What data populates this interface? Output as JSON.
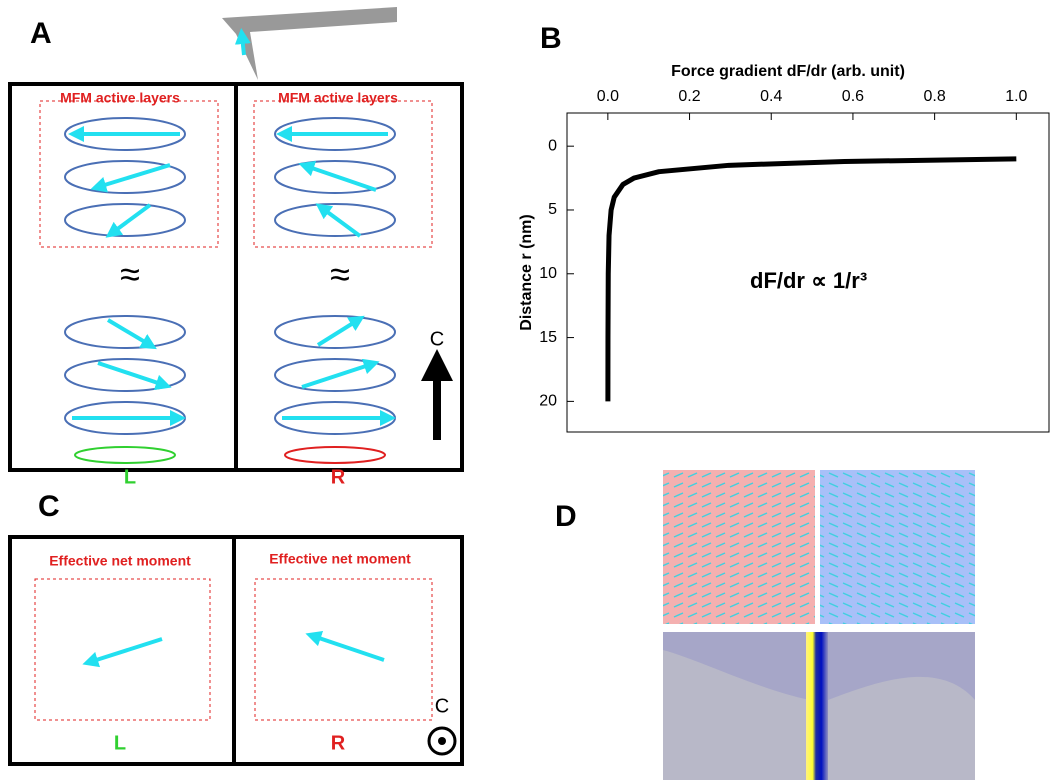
{
  "panels": {
    "a": {
      "label": "A",
      "top_label": "MFM active layers",
      "left_label": "L",
      "right_label": "R",
      "axis_label": "C"
    },
    "b": {
      "label": "B"
    },
    "c": {
      "label": "C",
      "top_label": "Effective net moment",
      "left_label": "L",
      "right_label": "R",
      "axis_label": "C"
    },
    "d": {
      "label": "D"
    }
  },
  "chart_data": {
    "type": "line",
    "x_label": "Force gradient dF/dr (arb. unit)",
    "y_label": "Distance r (nm)",
    "annotation": "dF/dr ∝ 1/r³",
    "x": [
      1.0,
      0.579,
      0.296,
      0.125,
      0.064,
      0.037,
      0.0156,
      0.008,
      0.0029,
      0.001,
      0.0003,
      0.000125
    ],
    "series": [
      {
        "color": "#000000",
        "values": [
          1,
          1.2,
          1.5,
          2,
          2.5,
          3,
          4,
          5,
          7,
          10,
          15,
          20
        ]
      }
    ],
    "xlim": [
      -0.1,
      1.08
    ],
    "xticks": [
      {
        "value": 0,
        "label": "0.0"
      },
      0.2,
      0.4,
      0.6,
      0.8,
      {
        "value": 1,
        "label": "1.0"
      }
    ],
    "ylim": [
      -2.6,
      22.4
    ],
    "y_inverted": true,
    "yticks": [
      0,
      5,
      10,
      15,
      20
    ]
  }
}
